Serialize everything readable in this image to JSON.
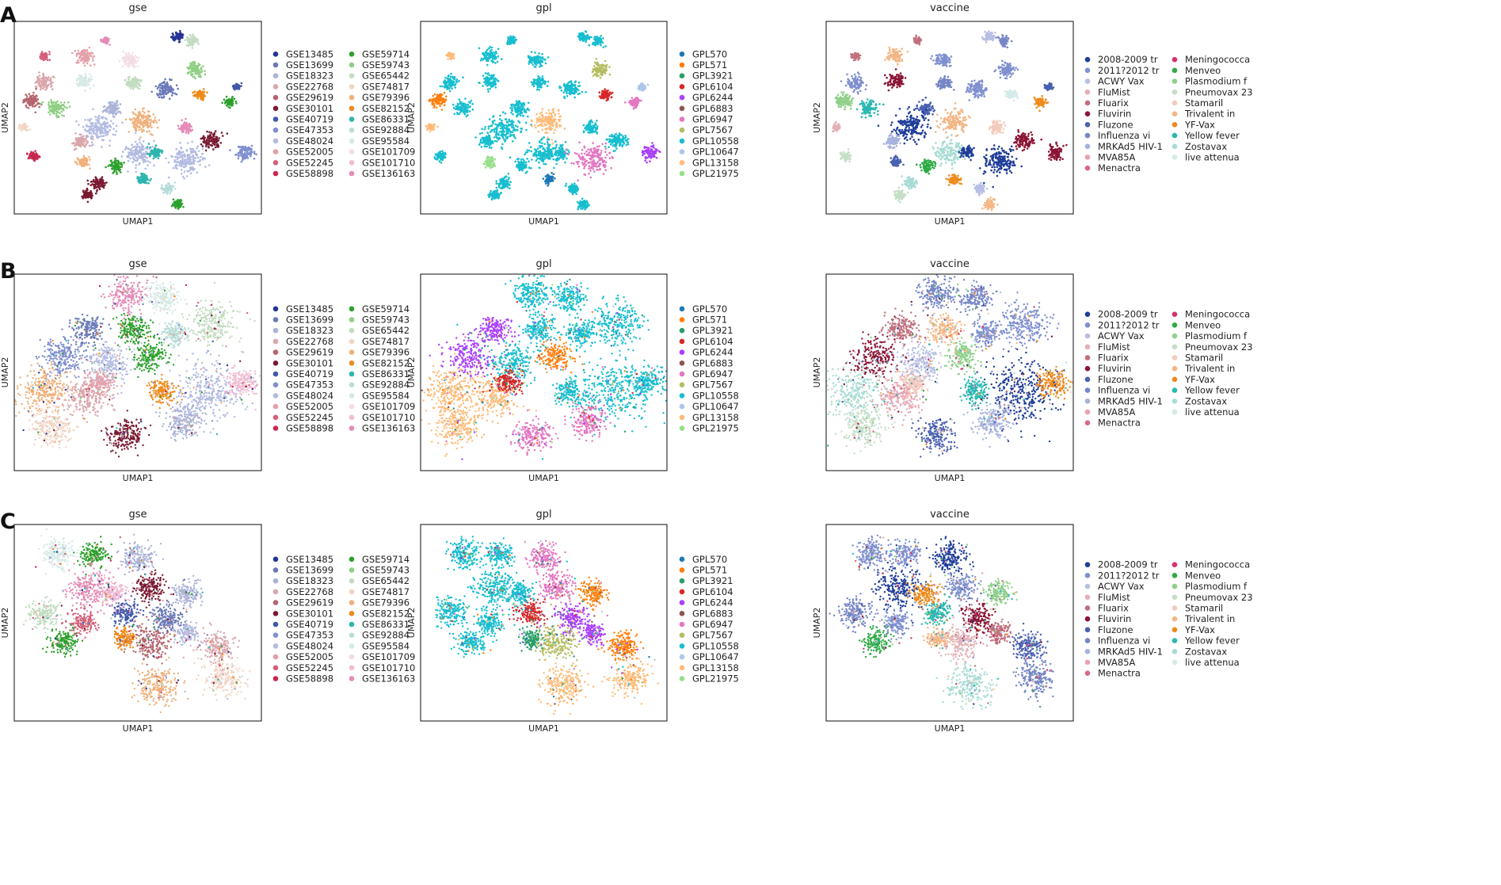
{
  "figure": {
    "panel_letters": [
      "A",
      "B",
      "C"
    ],
    "plot_titles": [
      "gse",
      "gpl",
      "vaccine"
    ],
    "xlabel": "UMAP1",
    "ylabel": "UMAP2"
  },
  "legends": {
    "gse": [
      {
        "label": "GSE13485",
        "color": "#253494"
      },
      {
        "label": "GSE13699",
        "color": "#6a7ab8"
      },
      {
        "label": "GSE18323",
        "color": "#aab3d8"
      },
      {
        "label": "GSE22768",
        "color": "#d9a6ac"
      },
      {
        "label": "GSE29619",
        "color": "#b5656e"
      },
      {
        "label": "GSE30101",
        "color": "#7a1a30"
      },
      {
        "label": "GSE40719",
        "color": "#4158a8"
      },
      {
        "label": "GSE47353",
        "color": "#7f8fcf"
      },
      {
        "label": "GSE48024",
        "color": "#b2bbe2"
      },
      {
        "label": "GSE52005",
        "color": "#e3a0a8"
      },
      {
        "label": "GSE52245",
        "color": "#d4607a"
      },
      {
        "label": "GSE58898",
        "color": "#c8284e"
      },
      {
        "label": "GSE59714",
        "color": "#2ca02c"
      },
      {
        "label": "GSE59743",
        "color": "#8fce84"
      },
      {
        "label": "GSE65442",
        "color": "#c2dcc0"
      },
      {
        "label": "GSE74817",
        "color": "#f2d4c4"
      },
      {
        "label": "GSE79396",
        "color": "#f0b07a"
      },
      {
        "label": "GSE82152",
        "color": "#ee8a1a"
      },
      {
        "label": "GSE86331",
        "color": "#2cb5ae"
      },
      {
        "label": "GSE92884",
        "color": "#b8ddd8"
      },
      {
        "label": "GSE95584",
        "color": "#d6e9e6"
      },
      {
        "label": "GSE101709",
        "color": "#f3dde4"
      },
      {
        "label": "GSE101710",
        "color": "#f2bcd2"
      },
      {
        "label": "GSE136163",
        "color": "#e48bb6"
      }
    ],
    "gpl": [
      {
        "label": "GPL570",
        "color": "#1f77b4"
      },
      {
        "label": "GPL571",
        "color": "#ff7f0e"
      },
      {
        "label": "GPL3921",
        "color": "#279e68"
      },
      {
        "label": "GPL6104",
        "color": "#d62728"
      },
      {
        "label": "GPL6244",
        "color": "#aa40fc"
      },
      {
        "label": "GPL6883",
        "color": "#8c564b"
      },
      {
        "label": "GPL6947",
        "color": "#e377c2"
      },
      {
        "label": "GPL7567",
        "color": "#b5bd61"
      },
      {
        "label": "GPL10558",
        "color": "#17becf"
      },
      {
        "label": "GPL10647",
        "color": "#aec7e8"
      },
      {
        "label": "GPL13158",
        "color": "#ffbb78"
      },
      {
        "label": "GPL21975",
        "color": "#98df8a"
      }
    ],
    "vaccine": [
      {
        "label": "2008-2009 tr",
        "color": "#1f3d99"
      },
      {
        "label": "2011?2012 tr",
        "color": "#7f8fcf"
      },
      {
        "label": "ACWY Vax",
        "color": "#b7bfe3"
      },
      {
        "label": "FluMist",
        "color": "#e3b1b8"
      },
      {
        "label": "Fluarix",
        "color": "#c0707c"
      },
      {
        "label": "Fluvirin",
        "color": "#8b1535"
      },
      {
        "label": "Fluzone",
        "color": "#4a60b0"
      },
      {
        "label": "Influenza vi",
        "color": "#7585c6"
      },
      {
        "label": "MRKAd5 HIV-1",
        "color": "#a8b2dd"
      },
      {
        "label": "MVA85A",
        "color": "#e8a3b0"
      },
      {
        "label": "Menactra",
        "color": "#d96a84"
      },
      {
        "label": "Meningococca",
        "color": "#d4336a"
      },
      {
        "label": "Menveo",
        "color": "#2eaa44"
      },
      {
        "label": "Plasmodium f",
        "color": "#8fd08a"
      },
      {
        "label": "Pneumovax 23",
        "color": "#c5dfc6"
      },
      {
        "label": "Stamaril",
        "color": "#f3cbbd"
      },
      {
        "label": "Trivalent in",
        "color": "#f3b685"
      },
      {
        "label": "YF-Vax",
        "color": "#ee8a1a"
      },
      {
        "label": "Yellow fever",
        "color": "#27b8b0"
      },
      {
        "label": "Zostavax",
        "color": "#a8dcd4"
      },
      {
        "label": "live attenua",
        "color": "#d3ebe8"
      }
    ]
  },
  "chart_data": [
    {
      "type": "scatter",
      "panel": "A",
      "title": "gse",
      "xlabel": "UMAP1",
      "ylabel": "UMAP2",
      "legend": "right",
      "grid": false
    },
    {
      "type": "scatter",
      "panel": "A",
      "title": "gpl",
      "xlabel": "UMAP1",
      "ylabel": "UMAP2",
      "legend": "right",
      "grid": false
    },
    {
      "type": "scatter",
      "panel": "A",
      "title": "vaccine",
      "xlabel": "UMAP1",
      "ylabel": "UMAP2",
      "legend": "right",
      "grid": false
    },
    {
      "type": "scatter",
      "panel": "B",
      "title": "gse",
      "xlabel": "UMAP1",
      "ylabel": "UMAP2",
      "legend": "right",
      "grid": false
    },
    {
      "type": "scatter",
      "panel": "B",
      "title": "gpl",
      "xlabel": "UMAP1",
      "ylabel": "UMAP2",
      "legend": "right",
      "grid": false
    },
    {
      "type": "scatter",
      "panel": "B",
      "title": "vaccine",
      "xlabel": "UMAP1",
      "ylabel": "UMAP2",
      "legend": "right",
      "grid": false
    },
    {
      "type": "scatter",
      "panel": "C",
      "title": "gse",
      "xlabel": "UMAP1",
      "ylabel": "UMAP2",
      "legend": "right",
      "grid": false
    },
    {
      "type": "scatter",
      "panel": "C",
      "title": "gpl",
      "xlabel": "UMAP1",
      "ylabel": "UMAP2",
      "legend": "right",
      "grid": false
    },
    {
      "type": "scatter",
      "panel": "C",
      "title": "vaccine",
      "xlabel": "UMAP1",
      "ylabel": "UMAP2",
      "legend": "right",
      "grid": false
    }
  ]
}
